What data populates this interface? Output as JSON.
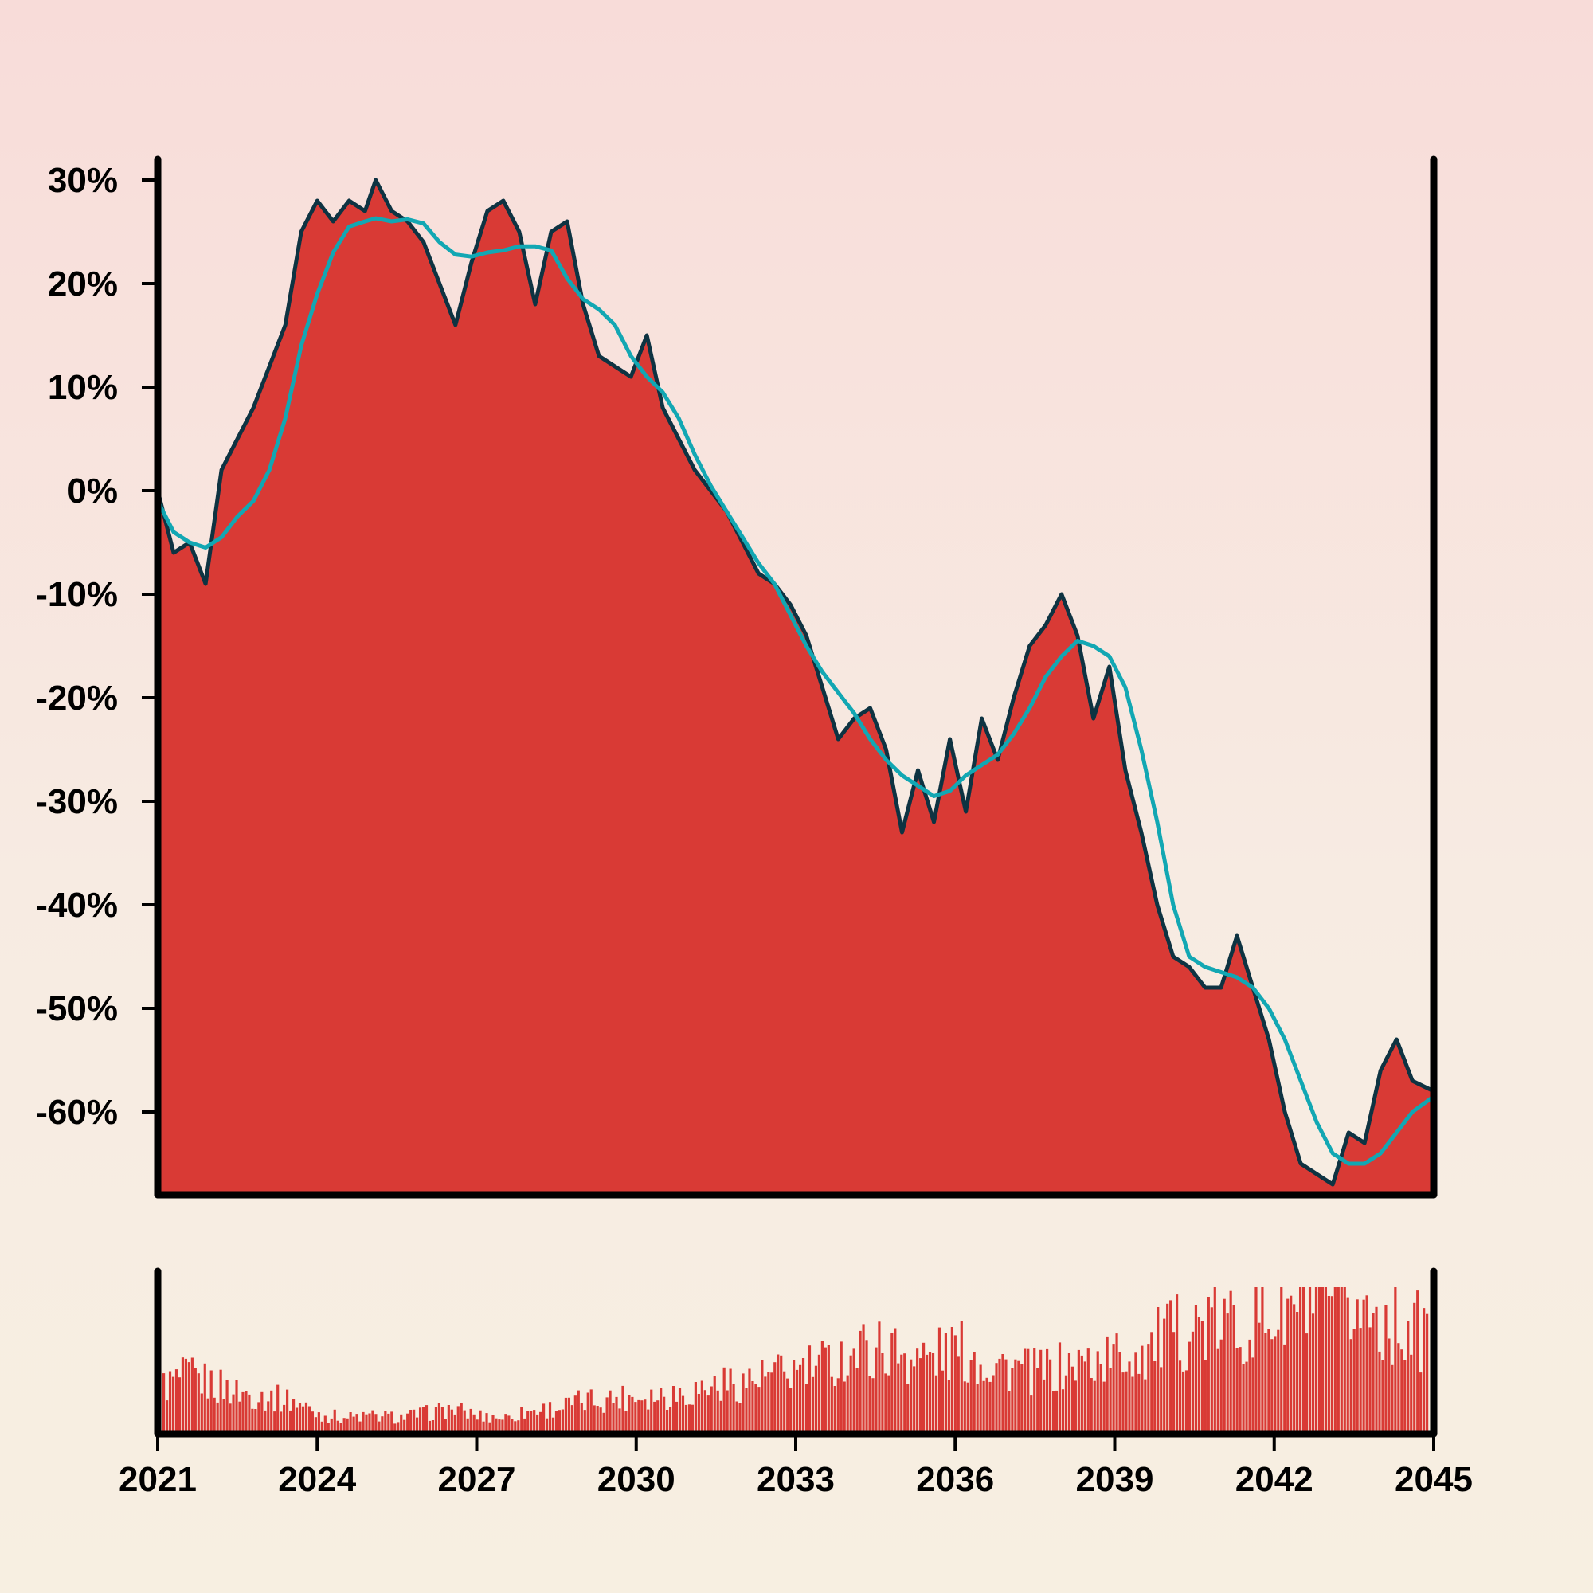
{
  "chart_data": {
    "type": "area",
    "title": "",
    "xlabel": "",
    "ylabel": "",
    "x_ticks": [
      "2021",
      "2024",
      "2027",
      "2030",
      "2033",
      "2036",
      "2039",
      "2042",
      "2045"
    ],
    "y_ticks": [
      "30%",
      "20%",
      "10%",
      "0%",
      "-10%",
      "-20%",
      "-30%",
      "-40%",
      "-50%",
      "-60%"
    ],
    "xlim": [
      2021,
      2045
    ],
    "ylim": [
      -67,
      32
    ],
    "grid": false,
    "legend": "none",
    "colors": {
      "area_fill": "#d93a35",
      "area_line": "#0e3342",
      "moving_average": "#12a7b3",
      "volume_bars": "#d93a35",
      "axes": "#000000"
    },
    "series": [
      {
        "values_kind": "cumulative return (%)",
        "x": [
          2021.0,
          2021.3,
          2021.6,
          2021.9,
          2022.2,
          2022.5,
          2022.8,
          2023.1,
          2023.4,
          2023.7,
          2024.0,
          2024.3,
          2024.6,
          2024.9,
          2025.1,
          2025.4,
          2025.7,
          2026.0,
          2026.3,
          2026.6,
          2026.9,
          2027.2,
          2027.5,
          2027.8,
          2028.1,
          2028.4,
          2028.7,
          2029.0,
          2029.3,
          2029.6,
          2029.9,
          2030.2,
          2030.5,
          2030.8,
          2031.1,
          2031.4,
          2031.7,
          2032.0,
          2032.3,
          2032.6,
          2032.9,
          2033.2,
          2033.5,
          2033.8,
          2034.1,
          2034.4,
          2034.7,
          2035.0,
          2035.3,
          2035.6,
          2035.9,
          2036.2,
          2036.5,
          2036.8,
          2037.1,
          2037.4,
          2037.7,
          2038.0,
          2038.3,
          2038.6,
          2038.9,
          2039.2,
          2039.5,
          2039.8,
          2040.1,
          2040.4,
          2040.7,
          2041.0,
          2041.3,
          2041.6,
          2041.9,
          2042.2,
          2042.5,
          2042.8,
          2043.1,
          2043.4,
          2043.7,
          2044.0,
          2044.3,
          2044.6,
          2045.0
        ],
        "values": [
          0,
          -6,
          -5,
          -9,
          2,
          5,
          8,
          12,
          16,
          25,
          28,
          26,
          28,
          27,
          30,
          27,
          26,
          24,
          20,
          16,
          22,
          27,
          28,
          25,
          18,
          25,
          26,
          18,
          13,
          12,
          11,
          15,
          8,
          5,
          2,
          0,
          -2,
          -5,
          -8,
          -9,
          -11,
          -14,
          -19,
          -24,
          -22,
          -21,
          -25,
          -33,
          -27,
          -32,
          -24,
          -31,
          -22,
          -26,
          -20,
          -15,
          -13,
          -10,
          -14,
          -22,
          -17,
          -27,
          -33,
          -40,
          -45,
          -46,
          -48,
          -48,
          -43,
          -48,
          -53,
          -60,
          -65,
          -66,
          -67,
          -62,
          -63,
          -56,
          -53,
          -57,
          -58
        ]
      },
      {
        "values_kind": "moving average (%)",
        "x": [
          2021.0,
          2021.3,
          2021.6,
          2021.9,
          2022.2,
          2022.5,
          2022.8,
          2023.1,
          2023.4,
          2023.7,
          2024.0,
          2024.3,
          2024.6,
          2024.9,
          2025.1,
          2025.4,
          2025.7,
          2026.0,
          2026.3,
          2026.6,
          2026.9,
          2027.2,
          2027.5,
          2027.8,
          2028.1,
          2028.4,
          2028.7,
          2029.0,
          2029.3,
          2029.6,
          2029.9,
          2030.2,
          2030.5,
          2030.8,
          2031.1,
          2031.4,
          2031.7,
          2032.0,
          2032.3,
          2032.6,
          2032.9,
          2033.2,
          2033.5,
          2033.8,
          2034.1,
          2034.4,
          2034.7,
          2035.0,
          2035.3,
          2035.6,
          2035.9,
          2036.2,
          2036.5,
          2036.8,
          2037.1,
          2037.4,
          2037.7,
          2038.0,
          2038.3,
          2038.6,
          2038.9,
          2039.2,
          2039.5,
          2039.8,
          2040.1,
          2040.4,
          2040.7,
          2041.0,
          2041.3,
          2041.6,
          2041.9,
          2042.2,
          2042.5,
          2042.8,
          2043.1,
          2043.4,
          2043.7,
          2044.0,
          2044.3,
          2044.6,
          2045.0
        ],
        "values": [
          -1,
          -4,
          -5,
          -5.5,
          -4.5,
          -2.5,
          -1,
          2,
          7,
          14,
          19,
          23,
          25.5,
          26,
          26.3,
          26,
          26.2,
          25.8,
          24,
          22.8,
          22.6,
          23,
          23.2,
          23.6,
          23.6,
          23.2,
          20.5,
          18.5,
          17.5,
          16,
          13,
          11,
          9.5,
          7,
          3.5,
          0.5,
          -2,
          -4.5,
          -7,
          -9,
          -12,
          -15,
          -17.5,
          -19.5,
          -21.5,
          -24,
          -26,
          -27.5,
          -28.5,
          -29.5,
          -29,
          -27.5,
          -26.5,
          -25.5,
          -23.5,
          -21,
          -18,
          -16,
          -14.5,
          -15,
          -16,
          -19,
          -25,
          -32,
          -40,
          -45,
          -46,
          -46.5,
          -47,
          -48,
          -50,
          -53,
          -57,
          -61,
          -64,
          -65,
          -65,
          -64,
          -62,
          -60,
          -58.5
        ]
      }
    ],
    "volume": {
      "values_kind": "relative volume (0-1)",
      "x": [
        2021.0,
        2021.5,
        2022.0,
        2022.5,
        2023.0,
        2023.5,
        2024.0,
        2024.5,
        2025.0,
        2025.5,
        2026.0,
        2026.5,
        2027.0,
        2027.5,
        2028.0,
        2028.5,
        2029.0,
        2029.5,
        2030.0,
        2030.5,
        2031.0,
        2031.5,
        2032.0,
        2032.5,
        2033.0,
        2033.5,
        2034.0,
        2034.5,
        2035.0,
        2035.5,
        2036.0,
        2036.5,
        2037.0,
        2037.5,
        2038.0,
        2038.5,
        2039.0,
        2039.5,
        2040.0,
        2040.5,
        2041.0,
        2041.5,
        2042.0,
        2042.5,
        2043.0,
        2043.5,
        2044.0,
        2044.5,
        2045.0
      ],
      "values": [
        0.35,
        0.42,
        0.36,
        0.3,
        0.27,
        0.24,
        0.14,
        0.12,
        0.13,
        0.12,
        0.15,
        0.18,
        0.13,
        0.12,
        0.17,
        0.19,
        0.24,
        0.26,
        0.28,
        0.29,
        0.31,
        0.36,
        0.38,
        0.42,
        0.46,
        0.5,
        0.58,
        0.64,
        0.6,
        0.55,
        0.62,
        0.55,
        0.5,
        0.45,
        0.48,
        0.52,
        0.56,
        0.6,
        0.7,
        0.78,
        0.8,
        0.82,
        0.86,
        0.92,
        0.95,
        0.93,
        0.88,
        0.8,
        0.72
      ]
    }
  }
}
